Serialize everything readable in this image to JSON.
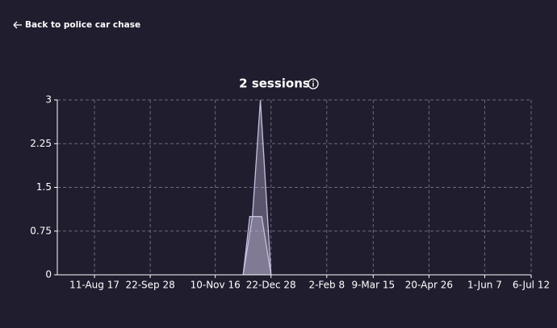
{
  "back_link": "Back to police car chase",
  "chart_data": {
    "type": "area",
    "title": "2 sessions",
    "series": [
      {
        "color": "#c8bfdf",
        "x": [
          112,
          119,
          125,
          133
        ],
        "values": [
          0,
          1,
          3,
          0
        ]
      },
      {
        "color": "#c8bfdf",
        "x": [
          112,
          117,
          126,
          133
        ],
        "values": [
          0,
          1,
          1,
          0
        ]
      }
    ],
    "xlim": [
      -28,
      329
    ],
    "xticks": [
      {
        "value": 0,
        "label": "11-Aug 17"
      },
      {
        "value": 42,
        "label": "22-Sep 28"
      },
      {
        "value": 91,
        "label": "10-Nov 16"
      },
      {
        "value": 133,
        "label": "22-Dec 28"
      },
      {
        "value": 175,
        "label": "2-Feb 8"
      },
      {
        "value": 210,
        "label": "9-Mar 15"
      },
      {
        "value": 252,
        "label": "20-Apr 26"
      },
      {
        "value": 294,
        "label": "1-Jun 7"
      },
      {
        "value": 329,
        "label": "6-Jul 12"
      }
    ],
    "ylim": [
      0,
      3
    ],
    "yticks": [
      0,
      0.75,
      1.5,
      2.25,
      3
    ],
    "grid": true
  }
}
